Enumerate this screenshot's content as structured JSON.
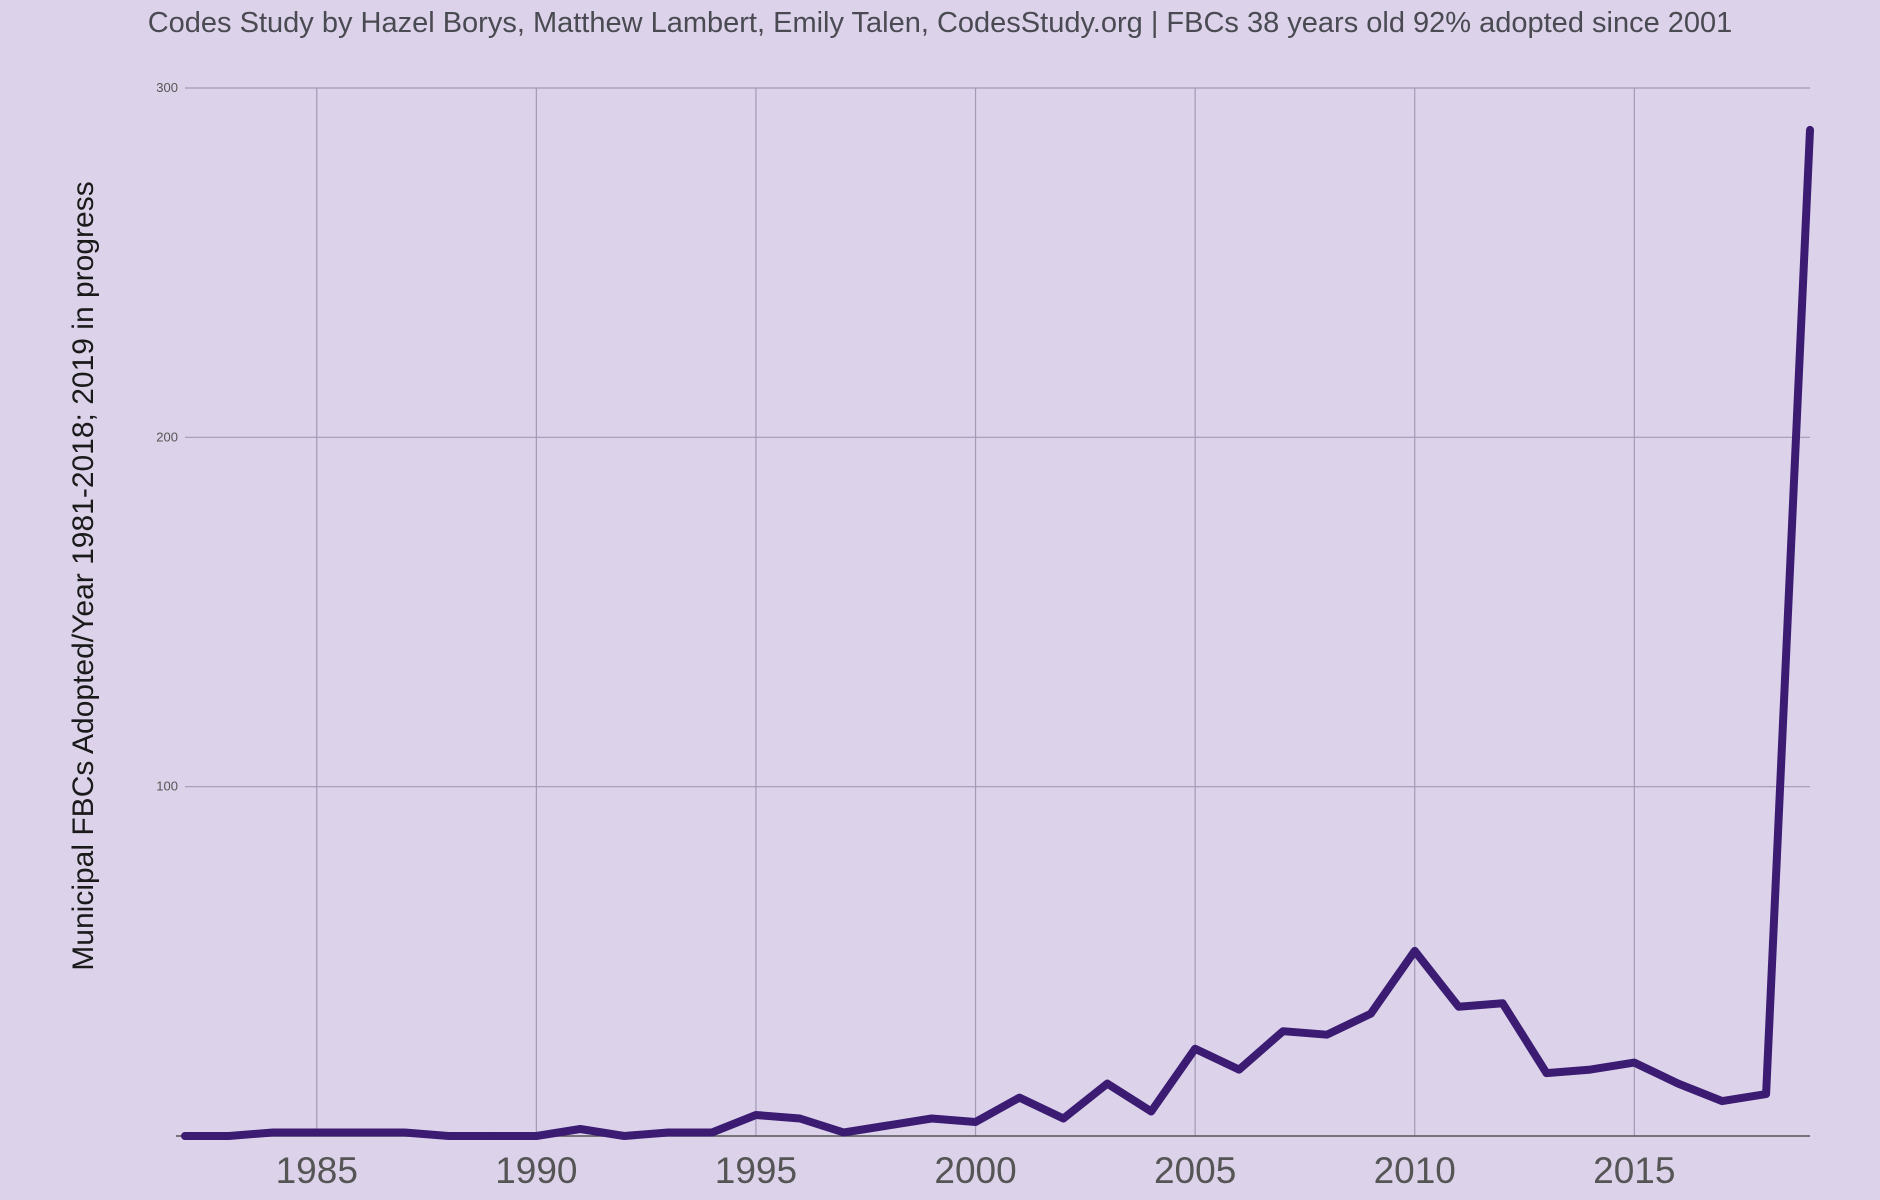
{
  "chart_data": {
    "type": "line",
    "title": "Codes Study by Hazel Borys, Matthew Lambert, Emily Talen,  CodesStudy.org  |  FBCs 38 years old 92% adopted since 2001",
    "xlabel": "",
    "ylabel": "Municipal FBCs Adopted/Year 1981-2018; 2019 in progress",
    "xlim": [
      1982,
      2019
    ],
    "ylim": [
      0,
      300
    ],
    "x_ticks": [
      "1985",
      "1990",
      "1995",
      "2000",
      "2005",
      "2010",
      "2015"
    ],
    "y_ticks": [
      "300",
      "200",
      "100"
    ],
    "grid": true,
    "legend": "none",
    "series": [
      {
        "color": "#3c1c73",
        "x": [
          1982,
          1983,
          1984,
          1985,
          1986,
          1987,
          1988,
          1989,
          1990,
          1991,
          1992,
          1993,
          1994,
          1995,
          1996,
          1997,
          1998,
          1999,
          2000,
          2001,
          2002,
          2003,
          2004,
          2005,
          2006,
          2007,
          2008,
          2009,
          2010,
          2011,
          2012,
          2013,
          2014,
          2015,
          2016,
          2017,
          2018,
          2019
        ],
        "values": [
          0,
          0,
          1,
          1,
          1,
          1,
          0,
          0,
          0,
          2,
          0,
          1,
          1,
          6,
          5,
          1,
          3,
          5,
          4,
          11,
          5,
          15,
          7,
          25,
          19,
          30,
          29,
          35,
          53,
          37,
          38,
          18,
          19,
          21,
          15,
          10,
          12,
          288
        ]
      }
    ]
  }
}
